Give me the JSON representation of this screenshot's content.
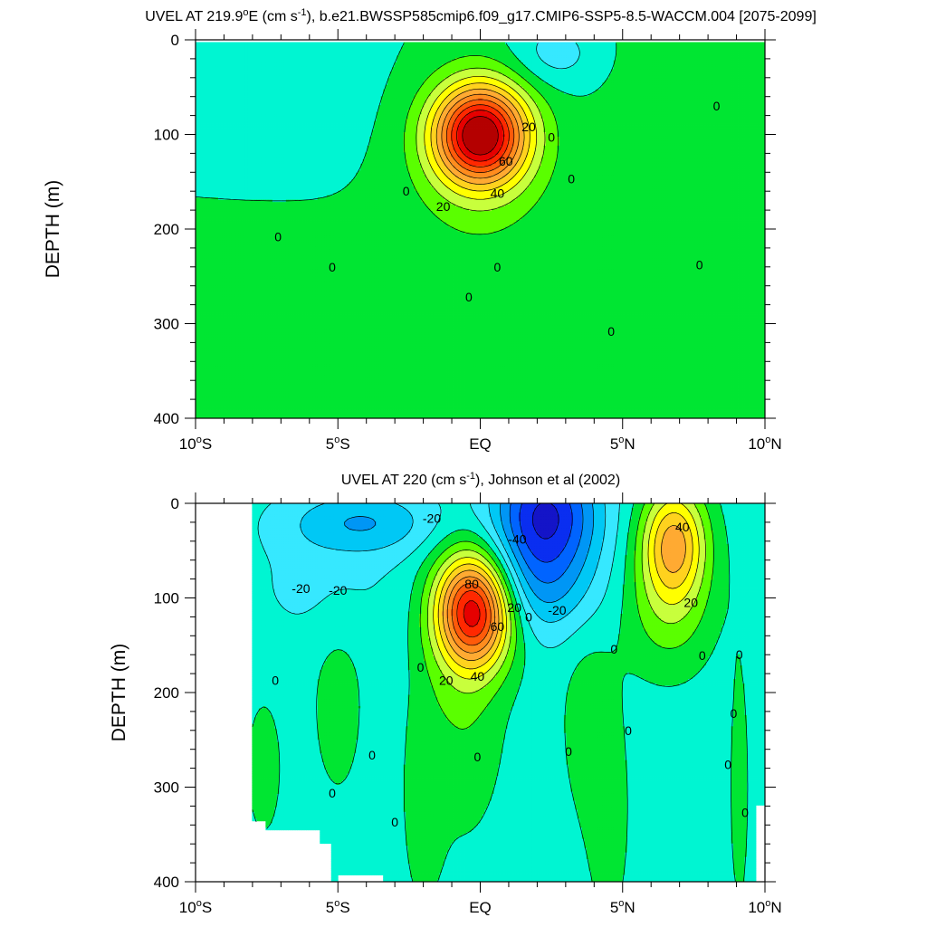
{
  "chart_data": [
    {
      "type": "heatmap",
      "title_main": "UVEL AT 219.9",
      "title_deg": "o",
      "title_after_deg": "E (cm s",
      "title_exp": "-1",
      "title_tail": "), b.e21.BWSSP585cmip6.f09_g17.CMIP6-SSP5-8.5-WACCM.004 [2075-2099]",
      "ylabel": "DEPTH (m)",
      "x_ticks": [
        {
          "num": "10",
          "hemi": "S"
        },
        {
          "num": "5",
          "hemi": "S"
        },
        {
          "num": "EQ",
          "hemi": ""
        },
        {
          "num": "5",
          "hemi": "N"
        },
        {
          "num": "10",
          "hemi": "N"
        }
      ],
      "y_ticks": [
        "0",
        "100",
        "200",
        "300",
        "400"
      ],
      "xlim": [
        -10,
        10
      ],
      "ylim": [
        0,
        400
      ],
      "contour_interval": 10,
      "background_value": 0,
      "features": [
        {
          "kind": "core",
          "lat": 0,
          "depth": 100,
          "peak": 105,
          "half_width_lat": 1.5,
          "half_depth": 60
        },
        {
          "kind": "surface_westward",
          "lat": 2.5,
          "depth": 15,
          "peak": -15
        },
        {
          "kind": "eastward_band",
          "lat": 6.3,
          "depth": 100,
          "peak": 8
        },
        {
          "kind": "eastward_lobe",
          "lat": -6,
          "depth": 320,
          "peak": 5
        },
        {
          "kind": "eastward_lobe",
          "lat": 0,
          "depth": 360,
          "peak": 5
        }
      ],
      "contour_labels": [
        {
          "text": "20",
          "lat": 1.7,
          "depth": 92
        },
        {
          "text": "0",
          "lat": 2.5,
          "depth": 103
        },
        {
          "text": "60",
          "lat": 0.9,
          "depth": 128
        },
        {
          "text": "40",
          "lat": 0.6,
          "depth": 162
        },
        {
          "text": "20",
          "lat": -1.3,
          "depth": 176
        },
        {
          "text": "0",
          "lat": -2.6,
          "depth": 160
        },
        {
          "text": "0",
          "lat": 3.2,
          "depth": 147
        },
        {
          "text": "0",
          "lat": 8.3,
          "depth": 70
        },
        {
          "text": "0",
          "lat": -7.1,
          "depth": 208
        },
        {
          "text": "0",
          "lat": -5.2,
          "depth": 240
        },
        {
          "text": "0",
          "lat": 0.6,
          "depth": 240
        },
        {
          "text": "0",
          "lat": -0.4,
          "depth": 272
        },
        {
          "text": "0",
          "lat": 4.6,
          "depth": 308
        },
        {
          "text": "0",
          "lat": 7.7,
          "depth": 238
        }
      ]
    },
    {
      "type": "heatmap",
      "title_main": "UVEL AT 220 (cm s",
      "title_exp": "-1",
      "title_tail": "), Johnson et al (2002)",
      "ylabel": "DEPTH (m)",
      "x_ticks": [
        {
          "num": "10",
          "hemi": "S"
        },
        {
          "num": "5",
          "hemi": "S"
        },
        {
          "num": "EQ",
          "hemi": ""
        },
        {
          "num": "5",
          "hemi": "N"
        },
        {
          "num": "10",
          "hemi": "N"
        }
      ],
      "y_ticks": [
        "0",
        "100",
        "200",
        "300",
        "400"
      ],
      "xlim": [
        -10,
        10
      ],
      "ylim": [
        0,
        400
      ],
      "contour_interval": 10,
      "background_value": -5,
      "features": [
        {
          "kind": "core",
          "lat": -0.2,
          "depth": 112,
          "peak": 100
        },
        {
          "kind": "surface_westward",
          "lat": 2.5,
          "depth": 10,
          "peak": -55
        },
        {
          "kind": "westward",
          "lat": -4.2,
          "depth": 20,
          "peak": -25
        },
        {
          "kind": "eastward_core",
          "lat": 6.9,
          "depth": 50,
          "peak": 48
        },
        {
          "kind": "eastward_lobe",
          "lat": 3.8,
          "depth": 230,
          "peak": 8
        },
        {
          "kind": "eastward_lobe",
          "lat": -5,
          "depth": 200,
          "peak": 5
        },
        {
          "kind": "eastward_lobe",
          "lat": -7.8,
          "depth": 280,
          "peak": 5
        }
      ],
      "contour_labels": [
        {
          "text": "-20",
          "lat": -1.7,
          "depth": 16
        },
        {
          "text": "-40",
          "lat": 1.3,
          "depth": 38
        },
        {
          "text": "-20",
          "lat": -6.3,
          "depth": 90
        },
        {
          "text": "-20",
          "lat": -5.0,
          "depth": 92
        },
        {
          "text": "80",
          "lat": -0.3,
          "depth": 85
        },
        {
          "text": "20",
          "lat": 1.2,
          "depth": 110
        },
        {
          "text": "0",
          "lat": 1.7,
          "depth": 120
        },
        {
          "text": "60",
          "lat": 0.6,
          "depth": 130
        },
        {
          "text": "-20",
          "lat": 2.7,
          "depth": 113
        },
        {
          "text": "40",
          "lat": 7.1,
          "depth": 25
        },
        {
          "text": "20",
          "lat": 7.4,
          "depth": 105
        },
        {
          "text": "40",
          "lat": -0.1,
          "depth": 183
        },
        {
          "text": "20",
          "lat": -1.2,
          "depth": 187
        },
        {
          "text": "0",
          "lat": -2.1,
          "depth": 173
        },
        {
          "text": "0",
          "lat": -7.2,
          "depth": 187
        },
        {
          "text": "0",
          "lat": -3.8,
          "depth": 266
        },
        {
          "text": "0",
          "lat": -5.2,
          "depth": 306
        },
        {
          "text": "0",
          "lat": -3.0,
          "depth": 337
        },
        {
          "text": "0",
          "lat": -0.1,
          "depth": 268
        },
        {
          "text": "0",
          "lat": 3.1,
          "depth": 262
        },
        {
          "text": "0",
          "lat": 4.7,
          "depth": 154
        },
        {
          "text": "0",
          "lat": 5.2,
          "depth": 240
        },
        {
          "text": "0",
          "lat": 7.8,
          "depth": 161
        },
        {
          "text": "0",
          "lat": 9.1,
          "depth": 160
        },
        {
          "text": "0",
          "lat": 8.9,
          "depth": 222
        },
        {
          "text": "0",
          "lat": 8.7,
          "depth": 276
        },
        {
          "text": "0",
          "lat": 9.3,
          "depth": 327
        }
      ]
    }
  ],
  "colors": {
    "levels": [
      -60,
      -50,
      -40,
      -30,
      -20,
      -10,
      0,
      10,
      20,
      30,
      40,
      50,
      60,
      70,
      80,
      90,
      100
    ],
    "fills": [
      "#1414c8",
      "#0a2ef0",
      "#0064ff",
      "#0096f5",
      "#00c8f5",
      "#36e8ff",
      "#00f5d2",
      "#00e632",
      "#5aff00",
      "#c8ff3c",
      "#ffff00",
      "#ffd21e",
      "#ffaa32",
      "#ff8c1e",
      "#ff5a0a",
      "#ff2800",
      "#e60000",
      "#b40000"
    ]
  }
}
